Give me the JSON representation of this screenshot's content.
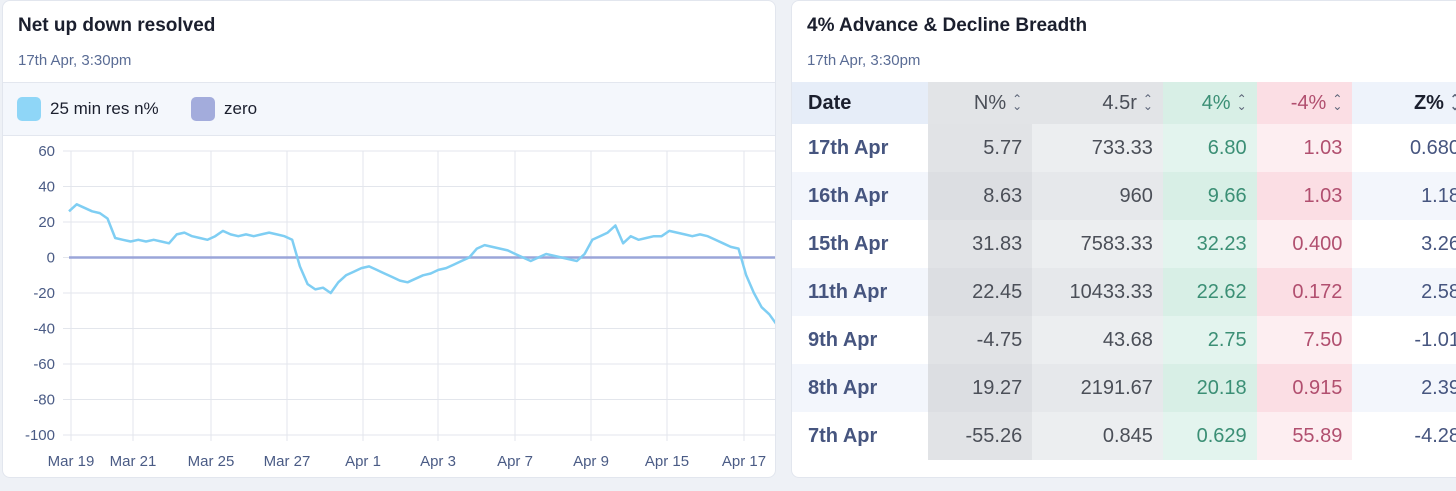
{
  "left_card": {
    "title": "Net up down resolved",
    "subtitle": "17th Apr, 3:30pm",
    "legend": [
      {
        "label": "25 min res n%",
        "color": "#8fd6f7"
      },
      {
        "label": "zero",
        "color": "#a3acdc"
      }
    ]
  },
  "chart_data": {
    "type": "line",
    "title": "Net up down resolved",
    "x_tick_labels": [
      "Mar 19",
      "Mar 21",
      "Mar 25",
      "Mar 27",
      "Apr 1",
      "Apr 3",
      "Apr 7",
      "Apr 9",
      "Apr 15",
      "Apr 17"
    ],
    "y_ticks": [
      60,
      40,
      20,
      0,
      -20,
      -40,
      -60,
      -80,
      -100
    ],
    "ylim": [
      -100,
      60
    ],
    "grid": true,
    "legend_position": "top-left",
    "series": [
      {
        "name": "25 min res n%",
        "color": "#7fcef3",
        "x": [
          0,
          0.1,
          0.2,
          0.3,
          0.4,
          0.5,
          0.6,
          0.7,
          0.8,
          0.9,
          1.0,
          1.1,
          1.2,
          1.3,
          1.4,
          1.5,
          1.6,
          1.7,
          1.8,
          1.9,
          2.0,
          2.1,
          2.2,
          2.3,
          2.4,
          2.5,
          2.6,
          2.7,
          2.8,
          2.9,
          3.0,
          3.1,
          3.2,
          3.3,
          3.4,
          3.5,
          3.6,
          3.7,
          3.8,
          3.9,
          4.0,
          4.1,
          4.2,
          4.3,
          4.4,
          4.5,
          4.6,
          4.7,
          4.8,
          4.9,
          5.0,
          5.1,
          5.2,
          5.3,
          5.4,
          5.5,
          5.6,
          5.7,
          5.8,
          5.9,
          6.0,
          6.1,
          6.2,
          6.3,
          6.4,
          6.5,
          6.6,
          6.7,
          6.8,
          6.9,
          7.0,
          7.1,
          7.2,
          7.3,
          7.4,
          7.5,
          7.6,
          7.7,
          7.8,
          7.9,
          8.0,
          8.1,
          8.2,
          8.3,
          8.4,
          8.5,
          8.6,
          8.7,
          8.8,
          8.9,
          9.0,
          9.1,
          9.2
        ],
        "y": [
          26,
          30,
          28,
          26,
          25,
          22,
          11,
          10,
          9,
          10,
          9,
          10,
          9,
          8,
          13,
          14,
          12,
          11,
          10,
          12,
          15,
          13,
          12,
          13,
          12,
          13,
          14,
          13,
          12,
          10,
          -5,
          -15,
          -18,
          -17,
          -20,
          -14,
          -10,
          -8,
          -6,
          -5,
          -7,
          -9,
          -11,
          -13,
          -14,
          -12,
          -10,
          -9,
          -7,
          -6,
          -4,
          -2,
          0,
          5,
          7,
          6,
          5,
          4,
          2,
          0,
          -2,
          0,
          2,
          1,
          0,
          -1,
          -2,
          2,
          10,
          12,
          14,
          18,
          8,
          12,
          10,
          11,
          12,
          12,
          15,
          14,
          13,
          12,
          13,
          12,
          10,
          8,
          6,
          5,
          -10,
          -20,
          -28,
          -32,
          -38
        ]
      },
      {
        "name": "zero",
        "color": "#9aa5d9",
        "y_constant": 0
      }
    ]
  },
  "right_card": {
    "title": "4% Advance & Decline Breadth",
    "subtitle": "17th Apr, 3:30pm",
    "columns": [
      "Date",
      "N%",
      "4.5r",
      "4%",
      "-4%",
      "Z%"
    ],
    "sort_icon": "sort-updown-icon",
    "rows": [
      [
        "17th Apr",
        "5.77",
        "733.33",
        "6.80",
        "1.03",
        "0.680"
      ],
      [
        "16th Apr",
        "8.63",
        "960",
        "9.66",
        "1.03",
        "1.18"
      ],
      [
        "15th Apr",
        "31.83",
        "7583.33",
        "32.23",
        "0.400",
        "3.26"
      ],
      [
        "11th Apr",
        "22.45",
        "10433.33",
        "22.62",
        "0.172",
        "2.58"
      ],
      [
        "9th Apr",
        "-4.75",
        "43.68",
        "2.75",
        "7.50",
        "-1.01"
      ],
      [
        "8th Apr",
        "19.27",
        "2191.67",
        "20.18",
        "0.915",
        "2.39"
      ],
      [
        "7th Apr",
        "-55.26",
        "0.845",
        "0.629",
        "55.89",
        "-4.28"
      ]
    ]
  }
}
